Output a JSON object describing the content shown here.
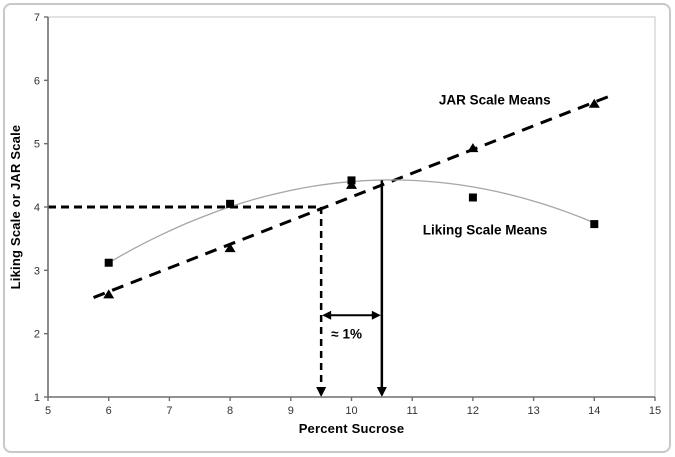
{
  "figure": {
    "colors": {
      "ink": "#000000",
      "axis": "#6e6e6e",
      "tick_text": "#333333",
      "curve": "#a6a6a6",
      "plot_border": "#d9d9d9",
      "figure_border": "#c8c8c8",
      "background": "#ffffff"
    }
  },
  "chart_data": {
    "type": "scatter",
    "title": "",
    "xlabel": "Percent Sucrose",
    "ylabel": "Liking Scale or JAR Scale",
    "xlim": [
      5,
      15
    ],
    "ylim": [
      1,
      7
    ],
    "x_ticks": [
      5,
      6,
      7,
      8,
      9,
      10,
      11,
      12,
      13,
      14,
      15
    ],
    "y_ticks": [
      1,
      2,
      3,
      4,
      5,
      6,
      7
    ],
    "grid": false,
    "legend_position": "inline-labels",
    "series": [
      {
        "name": "JAR Scale Means",
        "marker": "triangle",
        "line_style": "dashed",
        "x": [
          6,
          8,
          10,
          12,
          14
        ],
        "y": [
          2.62,
          3.35,
          4.35,
          4.93,
          5.63
        ],
        "trend": {
          "type": "linear",
          "from": [
            5.75,
            2.57
          ],
          "to": [
            14.28,
            5.76
          ]
        },
        "label": {
          "text": "JAR Scale Means",
          "x": 12.36,
          "y": 5.69
        }
      },
      {
        "name": "Liking Scale Means",
        "marker": "square",
        "line_style": "solid-curve",
        "x": [
          6,
          8,
          10,
          12,
          14
        ],
        "y": [
          3.12,
          4.05,
          4.42,
          4.15,
          3.73
        ],
        "trend": {
          "type": "quadratic",
          "a": -0.06043,
          "b": 1.2873,
          "c": -2.4283,
          "x_range": [
            6,
            14
          ]
        },
        "label": {
          "text": "Liking Scale Means",
          "x": 12.2,
          "y": 3.64
        }
      }
    ],
    "annotations": {
      "target_line": {
        "style": "dashed",
        "y": 4,
        "x_from": 5,
        "x_to": 9.5
      },
      "jar_drop_line": {
        "style": "dashed",
        "x": 9.5,
        "y_from": 4.0,
        "y_to": 1.0,
        "arrow": "down"
      },
      "liking_drop_line": {
        "style": "solid",
        "x": 10.5,
        "y_from": 4.42,
        "y_to": 1.0,
        "arrow": "down"
      },
      "difference_arrow": {
        "y": 2.29,
        "x_from": 9.5,
        "x_to": 10.5,
        "heads": "both"
      },
      "difference_label": {
        "text": "≈ 1%",
        "x": 9.92,
        "y": 1.99
      }
    }
  }
}
